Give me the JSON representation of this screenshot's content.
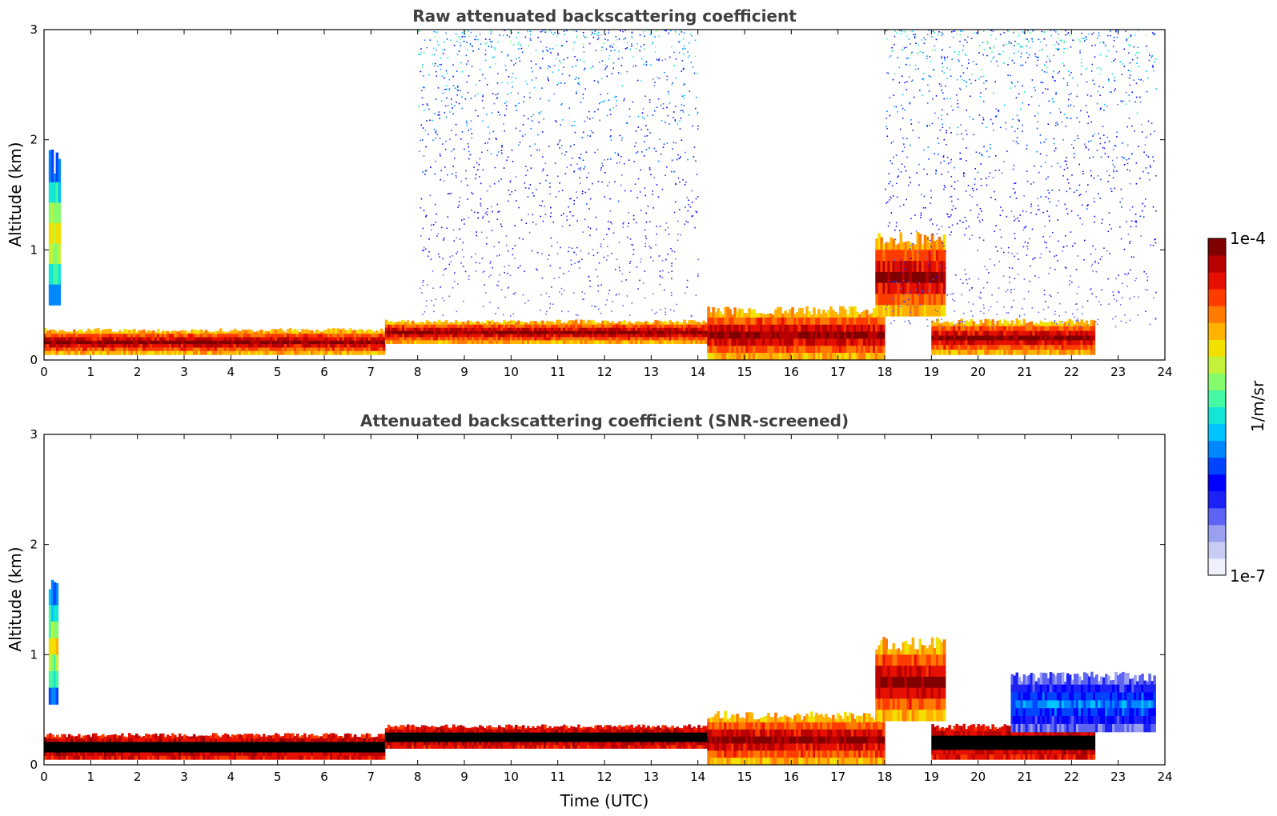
{
  "chart_data": [
    {
      "type": "heatmap",
      "title": "Raw attenuated backscattering coefficient",
      "xlabel": "",
      "ylabel": "Altitude (km)",
      "xlim": [
        0,
        24
      ],
      "ylim": [
        0,
        3
      ],
      "x_ticks": [
        "0",
        "1",
        "2",
        "3",
        "4",
        "5",
        "6",
        "7",
        "8",
        "9",
        "10",
        "11",
        "12",
        "13",
        "14",
        "15",
        "16",
        "17",
        "18",
        "19",
        "20",
        "21",
        "22",
        "23",
        "24"
      ],
      "y_ticks": [
        "0",
        "1",
        "2",
        "3"
      ],
      "features": [
        {
          "x": [
            0.0,
            7.3
          ],
          "y": [
            0.05,
            0.27
          ],
          "level": "high"
        },
        {
          "x": [
            7.3,
            14.2
          ],
          "y": [
            0.15,
            0.35
          ],
          "level": "high"
        },
        {
          "x": [
            14.2,
            18.0
          ],
          "y": [
            0.0,
            0.45
          ],
          "level": "high"
        },
        {
          "x": [
            17.8,
            19.3
          ],
          "y": [
            0.4,
            1.1
          ],
          "level": "high"
        },
        {
          "x": [
            19.0,
            22.5
          ],
          "y": [
            0.05,
            0.35
          ],
          "level": "high"
        },
        {
          "x": [
            0.1,
            0.35
          ],
          "y": [
            0.5,
            1.8
          ],
          "level": "medium"
        },
        {
          "x": [
            8.0,
            14.0
          ],
          "y": [
            0.4,
            3.0
          ],
          "level": "noise"
        },
        {
          "x": [
            18.0,
            23.8
          ],
          "y": [
            0.3,
            3.0
          ],
          "level": "noise"
        }
      ]
    },
    {
      "type": "heatmap",
      "title": "Attenuated backscattering coefficient (SNR-screened)",
      "xlabel": "Time (UTC)",
      "ylabel": "Altitude (km)",
      "xlim": [
        0,
        24
      ],
      "ylim": [
        0,
        3
      ],
      "x_ticks": [
        "0",
        "1",
        "2",
        "3",
        "4",
        "5",
        "6",
        "7",
        "8",
        "9",
        "10",
        "11",
        "12",
        "13",
        "14",
        "15",
        "16",
        "17",
        "18",
        "19",
        "20",
        "21",
        "22",
        "23",
        "24"
      ],
      "y_ticks": [
        "0",
        "1",
        "2",
        "3"
      ],
      "features": [
        {
          "x": [
            0.0,
            7.3
          ],
          "y": [
            0.05,
            0.27
          ],
          "level": "saturated"
        },
        {
          "x": [
            7.3,
            14.2
          ],
          "y": [
            0.15,
            0.35
          ],
          "level": "saturated"
        },
        {
          "x": [
            14.2,
            18.0
          ],
          "y": [
            0.0,
            0.45
          ],
          "level": "high"
        },
        {
          "x": [
            17.8,
            19.3
          ],
          "y": [
            0.4,
            1.1
          ],
          "level": "high"
        },
        {
          "x": [
            19.0,
            22.5
          ],
          "y": [
            0.05,
            0.35
          ],
          "level": "saturated"
        },
        {
          "x": [
            0.1,
            0.3
          ],
          "y": [
            0.55,
            1.6
          ],
          "level": "medium"
        },
        {
          "x": [
            20.7,
            23.8
          ],
          "y": [
            0.3,
            0.8
          ],
          "level": "low"
        }
      ]
    }
  ],
  "colorbar": {
    "max_label": "1e-4",
    "min_label": "1e-7",
    "unit": "1/m/sr",
    "colors": [
      "#eef0fb",
      "#c8cbf3",
      "#9a9ff0",
      "#5d63f2",
      "#1c22f5",
      "#0000ff",
      "#0044ff",
      "#0088ff",
      "#00c4ff",
      "#14e6d6",
      "#46f7a4",
      "#86fb6c",
      "#c2f23a",
      "#f2e000",
      "#ffb200",
      "#ff7a00",
      "#ff3c00",
      "#e61000",
      "#b80000",
      "#800000"
    ]
  }
}
